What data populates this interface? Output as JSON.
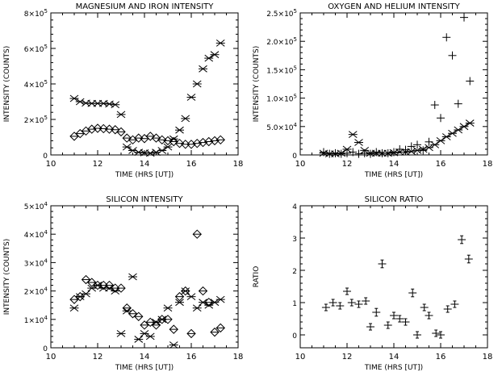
{
  "chart_data": [
    {
      "id": "p1",
      "type": "scatter",
      "title": "MAGNESIUM AND IRON INTENSITY",
      "xlabel": "TIME (HRS [UT])",
      "ylabel": "INTENSITY (COUNTS)",
      "xlim": [
        10,
        18
      ],
      "ylim": [
        0,
        800000
      ],
      "xticks": [
        10,
        12,
        14,
        16,
        18
      ],
      "yticks": [
        0,
        200000,
        400000,
        600000,
        800000
      ],
      "ytick_labels": [
        {
          "m": "0",
          "e": ""
        },
        {
          "m": "2×10",
          "e": "5"
        },
        {
          "m": "4×10",
          "e": "5"
        },
        {
          "m": "6×10",
          "e": "5"
        },
        {
          "m": "8×10",
          "e": "5"
        }
      ],
      "series": [
        {
          "marker": "asterisk",
          "x": [
            11.0,
            11.25,
            11.5,
            11.75,
            12.0,
            12.25,
            12.5,
            12.75,
            13.0,
            13.25,
            13.5,
            13.75,
            14.0,
            14.25,
            14.5,
            14.75,
            15.0,
            15.25,
            15.5,
            15.75,
            16.0,
            16.25,
            16.5,
            16.75,
            17.0,
            17.25
          ],
          "y": [
            318000,
            300000,
            292000,
            290000,
            290000,
            290000,
            287000,
            283000,
            228000,
            45000,
            25000,
            15000,
            12000,
            10000,
            15000,
            25000,
            45000,
            90000,
            140000,
            205000,
            325000,
            400000,
            485000,
            545000,
            565000,
            630000
          ]
        },
        {
          "marker": "diamond",
          "x": [
            11.0,
            11.25,
            11.5,
            11.75,
            12.0,
            12.25,
            12.5,
            12.75,
            13.0,
            13.25,
            13.5,
            13.75,
            14.0,
            14.25,
            14.5,
            14.75,
            15.0,
            15.25,
            15.5,
            15.75,
            16.0,
            16.25,
            16.5,
            16.75,
            17.0,
            17.25
          ],
          "y": [
            105000,
            120000,
            135000,
            145000,
            150000,
            148000,
            145000,
            142000,
            130000,
            95000,
            85000,
            95000,
            92000,
            105000,
            95000,
            85000,
            80000,
            75000,
            65000,
            60000,
            60000,
            65000,
            70000,
            75000,
            80000,
            85000
          ]
        }
      ]
    },
    {
      "id": "p2",
      "type": "scatter",
      "title": "OXYGEN AND HELIUM INTENSITY",
      "xlabel": "TIME (HRS [UT])",
      "ylabel": "INTENSITY (COUNTS)",
      "xlim": [
        10,
        18
      ],
      "ylim": [
        0,
        250000
      ],
      "xticks": [
        10,
        12,
        14,
        16,
        18
      ],
      "yticks": [
        0,
        50000,
        100000,
        150000,
        200000,
        250000
      ],
      "ytick_labels": [
        {
          "m": "0",
          "e": ""
        },
        {
          "m": "5.0×10",
          "e": "4"
        },
        {
          "m": "1.0×10",
          "e": "5"
        },
        {
          "m": "1.5×10",
          "e": "5"
        },
        {
          "m": "2.0×10",
          "e": "5"
        },
        {
          "m": "2.5×10",
          "e": "5"
        }
      ],
      "series": [
        {
          "marker": "asterisk",
          "x": [
            11.0,
            11.25,
            11.5,
            11.75,
            12.0,
            12.25,
            12.5,
            12.75,
            13.0,
            13.25,
            13.5,
            13.75,
            14.0,
            14.25,
            14.5,
            14.75,
            15.0,
            15.25,
            15.5,
            15.75,
            16.0,
            16.25,
            16.5,
            16.75,
            17.0,
            17.25
          ],
          "y": [
            3000,
            2000,
            2000,
            3000,
            10000,
            36000,
            22000,
            8000,
            3000,
            3000,
            3000,
            3000,
            4000,
            5000,
            5000,
            6000,
            8000,
            10000,
            13000,
            18000,
            25000,
            32000,
            38000,
            44000,
            50000,
            56000
          ]
        },
        {
          "marker": "plus",
          "x": [
            11.0,
            11.25,
            11.5,
            11.75,
            12.0,
            12.25,
            12.5,
            12.75,
            13.0,
            13.25,
            13.5,
            13.75,
            14.0,
            14.25,
            14.5,
            14.75,
            15.0,
            15.25,
            15.5,
            15.75,
            16.0,
            16.25,
            16.5,
            16.75,
            17.0,
            17.25
          ],
          "y": [
            5000,
            2000,
            3000,
            2000,
            3000,
            5000,
            2000,
            3000,
            2000,
            5000,
            3000,
            3000,
            5000,
            10000,
            9000,
            15000,
            18000,
            8000,
            23000,
            88000,
            65000,
            207000,
            175000,
            90000,
            242000,
            130000
          ]
        }
      ]
    },
    {
      "id": "p3",
      "type": "scatter",
      "title": "SILICON INTENSITY",
      "xlabel": "TIME (HRS [UT])",
      "ylabel": "INTENSITY (COUNTS)",
      "xlim": [
        10,
        18
      ],
      "ylim": [
        0,
        50000
      ],
      "xticks": [
        10,
        12,
        14,
        16,
        18
      ],
      "yticks": [
        0,
        10000,
        20000,
        30000,
        40000,
        50000
      ],
      "ytick_labels": [
        {
          "m": "0",
          "e": ""
        },
        {
          "m": "1×10",
          "e": "4"
        },
        {
          "m": "2×10",
          "e": "4"
        },
        {
          "m": "3×10",
          "e": "4"
        },
        {
          "m": "4×10",
          "e": "4"
        },
        {
          "m": "5×10",
          "e": "4"
        }
      ],
      "series": [
        {
          "marker": "asterisk",
          "x": [
            11.0,
            11.25,
            11.5,
            11.75,
            12.0,
            12.25,
            12.5,
            12.75,
            13.0,
            13.25,
            13.5,
            13.75,
            14.0,
            14.25,
            14.5,
            14.75,
            15.0,
            15.25,
            15.5,
            15.75,
            16.0,
            16.25,
            16.5,
            16.75,
            17.0,
            17.25
          ],
          "y": [
            14000,
            18000,
            19000,
            21000,
            22000,
            21000,
            21000,
            20000,
            5000,
            13000,
            25000,
            3000,
            5000,
            4000,
            9000,
            10000,
            14000,
            1000,
            16000,
            20000,
            18000,
            14000,
            16000,
            15000,
            16000,
            17000
          ]
        },
        {
          "marker": "diamond",
          "x": [
            11.0,
            11.25,
            11.5,
            11.75,
            12.0,
            12.25,
            12.5,
            12.75,
            13.0,
            13.25,
            13.5,
            13.75,
            14.0,
            14.25,
            14.5,
            14.75,
            15.0,
            15.25,
            15.5,
            15.75,
            16.0,
            16.25,
            16.5,
            16.75,
            17.0,
            17.25
          ],
          "y": [
            17000,
            18000,
            24000,
            23000,
            22000,
            22000,
            22000,
            21000,
            21000,
            14000,
            12000,
            11000,
            8000,
            9000,
            8000,
            10000,
            10000,
            6500,
            18000,
            20000,
            5000,
            40000,
            20000,
            16000,
            5500,
            7000
          ]
        }
      ]
    },
    {
      "id": "p4",
      "type": "scatter",
      "title": "SILICON RATIO",
      "xlabel": "TIME (HRS [UT])",
      "ylabel": "RATIO",
      "xlim": [
        10,
        18
      ],
      "ylim": [
        -0.4,
        4
      ],
      "xticks": [
        10,
        12,
        14,
        16,
        18
      ],
      "yticks": [
        0,
        1,
        2,
        3,
        4
      ],
      "ytick_labels": [
        {
          "m": "0",
          "e": ""
        },
        {
          "m": "1",
          "e": ""
        },
        {
          "m": "2",
          "e": ""
        },
        {
          "m": "3",
          "e": ""
        },
        {
          "m": "4",
          "e": ""
        }
      ],
      "series": [
        {
          "marker": "errorbar",
          "x": [
            11.1,
            11.4,
            11.7,
            12.0,
            12.2,
            12.5,
            12.8,
            13.0,
            13.25,
            13.5,
            13.75,
            14.0,
            14.25,
            14.5,
            14.8,
            15.0,
            15.3,
            15.5,
            15.8,
            16.0,
            16.3,
            16.6,
            16.9,
            17.2
          ],
          "y": [
            0.85,
            1.0,
            0.9,
            1.35,
            1.0,
            0.95,
            1.05,
            0.25,
            0.7,
            2.2,
            0.3,
            0.6,
            0.5,
            0.4,
            1.3,
            0.0,
            0.85,
            0.6,
            0.05,
            0.0,
            0.8,
            0.95,
            2.95,
            2.35
          ],
          "yerr": [
            0.1,
            0.1,
            0.1,
            0.1,
            0.1,
            0.1,
            0.1,
            0.1,
            0.12,
            0.12,
            0.1,
            0.1,
            0.1,
            0.1,
            0.12,
            0.1,
            0.1,
            0.1,
            0.1,
            0.1,
            0.1,
            0.1,
            0.12,
            0.12
          ]
        }
      ]
    }
  ]
}
